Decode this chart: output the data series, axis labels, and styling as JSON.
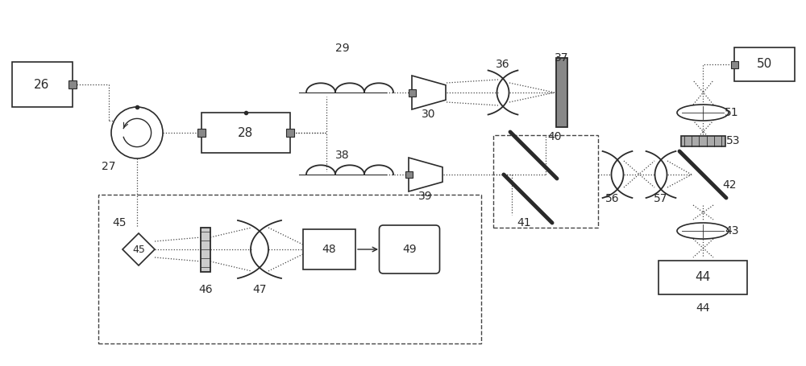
{
  "bg_color": "#ffffff",
  "lc": "#2a2a2a",
  "dc": "#444444",
  "fig_w": 10.0,
  "fig_h": 4.55,
  "dpi": 100,
  "xlim": [
    0,
    10
  ],
  "ylim": [
    0,
    4.55
  ]
}
